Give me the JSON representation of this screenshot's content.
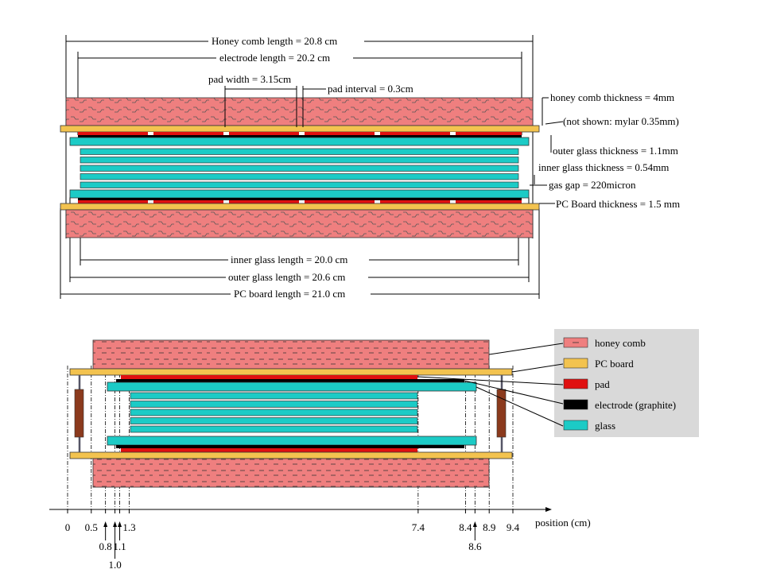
{
  "colors": {
    "honeycomb": "#ef7f7f",
    "pcboard": "#f3c34f",
    "pad": "#e01010",
    "electrode": "#000000",
    "glass": "#1ccbc6",
    "legend_bg": "#d9d9d9",
    "spacer": "#8b3a1d"
  },
  "top_diagram": {
    "honeycomb_length": "Honey comb length = 20.8 cm",
    "electrode_length": "electrode length = 20.2 cm",
    "pad_width": "pad width = 3.15cm",
    "pad_interval": "pad interval = 0.3cm",
    "honeycomb_thickness": "honey comb thickness = 4mm",
    "mylar_note": "(not shown: mylar 0.35mm)",
    "outer_glass_thickness": "outer glass thickness = 1.1mm",
    "inner_glass_thickness": "inner glass thickness = 0.54mm",
    "gas_gap": "gas gap = 220micron",
    "pc_board_thickness": "PC Board thickness = 1.5 mm",
    "inner_glass_length": "inner glass length = 20.0 cm",
    "outer_glass_length": "outer glass length = 20.6 cm",
    "pc_board_length": "PC board length = 21.0 cm"
  },
  "legend": [
    {
      "key": "honeycomb",
      "label": "honey comb",
      "icon": "honeycomb-swatch-icon"
    },
    {
      "key": "pcboard",
      "label": "PC board",
      "icon": "pcboard-swatch-icon"
    },
    {
      "key": "pad",
      "label": "pad",
      "icon": "pad-swatch-icon"
    },
    {
      "key": "electrode",
      "label": "electrode (graphite)",
      "icon": "electrode-swatch-icon"
    },
    {
      "key": "glass",
      "label": "glass",
      "icon": "glass-swatch-icon"
    }
  ],
  "bottom_diagram": {
    "axis_label": "position (cm)",
    "ticks": [
      {
        "value": 0,
        "label": "0",
        "row": 1
      },
      {
        "value": 0.5,
        "label": "0.5",
        "row": 1
      },
      {
        "value": 0.8,
        "label": "0.8",
        "row": 2
      },
      {
        "value": 1.0,
        "label": "1.0",
        "row": 3
      },
      {
        "value": 1.1,
        "label": "1.1",
        "row": 2
      },
      {
        "value": 1.3,
        "label": "1.3",
        "row": 1
      },
      {
        "value": 7.4,
        "label": "7.4",
        "row": 1
      },
      {
        "value": 8.4,
        "label": "8.4",
        "row": 1
      },
      {
        "value": 8.6,
        "label": "8.6",
        "row": 2
      },
      {
        "value": 8.9,
        "label": "8.9",
        "row": 1
      },
      {
        "value": 9.4,
        "label": "9.4",
        "row": 1
      }
    ]
  }
}
